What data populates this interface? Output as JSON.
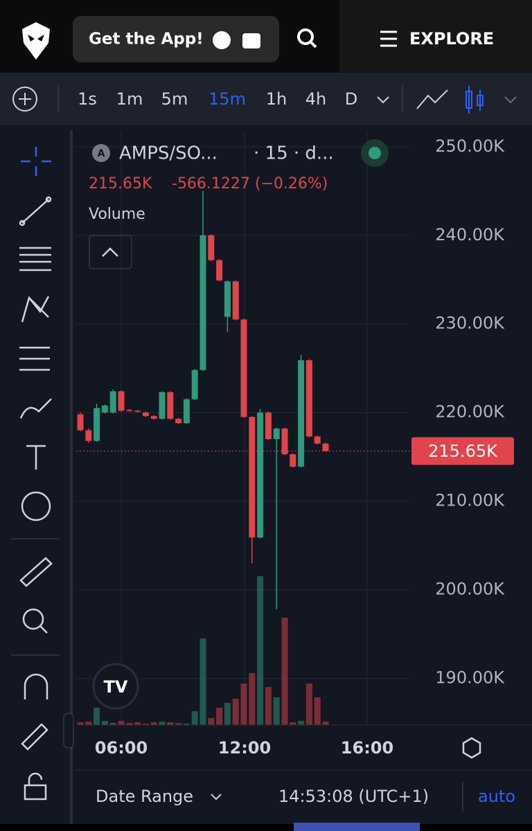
{
  "header": {
    "app_button": "Get the App!",
    "explore": "EXPLORE"
  },
  "intervals": [
    "1s",
    "1m",
    "5m",
    "15m",
    "1h",
    "4h",
    "D"
  ],
  "active_interval": "15m",
  "chart_data": {
    "type": "candlestick",
    "symbol": "AMPS/SO...",
    "interval_info": "· 15 · d...",
    "change": "-566.1227 (−0.26%)",
    "volume_label": "Volume",
    "up_color": "#2f9a7d",
    "down_color": "#e2444b",
    "open": [
      219.8,
      218.0,
      216.8,
      220.0,
      220.0,
      222.4,
      220.3,
      220.2,
      220.0,
      219.6,
      219.3,
      222.3,
      219.3,
      218.8,
      221.5,
      224.8,
      240.0,
      237.2,
      230.8,
      234.8,
      230.5,
      219.5,
      205.9,
      220.0,
      217.0,
      218.2,
      215.3,
      213.9,
      225.9,
      217.3,
      216.5
    ],
    "high": [
      220.0,
      218.2,
      221.0,
      220.9,
      222.6,
      222.5,
      220.4,
      220.3,
      220.1,
      219.7,
      222.4,
      222.4,
      219.4,
      221.6,
      224.9,
      245.0,
      240.1,
      237.3,
      234.9,
      234.9,
      230.6,
      219.6,
      220.4,
      220.1,
      218.3,
      218.3,
      215.4,
      226.5,
      226.0,
      217.4,
      216.6
    ],
    "low": [
      217.9,
      216.6,
      216.7,
      219.9,
      219.9,
      220.1,
      220.1,
      220.0,
      219.5,
      219.2,
      219.2,
      219.2,
      218.7,
      218.7,
      221.4,
      224.7,
      237.1,
      234.8,
      229.1,
      230.4,
      219.4,
      203.0,
      205.8,
      216.9,
      197.8,
      215.2,
      213.8,
      213.8,
      217.2,
      216.4,
      215.6
    ],
    "close": [
      218.0,
      216.8,
      220.5,
      220.8,
      222.4,
      220.2,
      220.2,
      220.1,
      219.6,
      219.3,
      222.3,
      219.3,
      218.8,
      221.5,
      224.8,
      240.0,
      237.2,
      234.9,
      234.8,
      230.5,
      219.5,
      205.9,
      220.0,
      217.0,
      218.2,
      215.3,
      213.9,
      225.9,
      217.3,
      216.5,
      215.65
    ],
    "volume": [
      4,
      5,
      25,
      6,
      3,
      6,
      3,
      4,
      2,
      4,
      5,
      4,
      3,
      2,
      20,
      125,
      10,
      25,
      32,
      38,
      60,
      75,
      215,
      55,
      40,
      155,
      4,
      6,
      60,
      40,
      5
    ],
    "vlim": [
      0,
      320
    ],
    "last_price": 215.65,
    "last_price_label": "215.65K",
    "ylim": [
      184.9,
      251.7
    ],
    "yticks": [
      {
        "value": 250,
        "label": "250.00K"
      },
      {
        "value": 240,
        "label": "240.00K"
      },
      {
        "value": 230,
        "label": "230.00K"
      },
      {
        "value": 220,
        "label": "220.00K"
      },
      {
        "value": 210,
        "label": "210.00K"
      },
      {
        "value": 200,
        "label": "200.00K"
      },
      {
        "value": 190,
        "label": "190.00K"
      }
    ],
    "time_labels": [
      "06:00",
      "12:00",
      "16:00"
    ]
  },
  "footer": {
    "date_range": "Date Range",
    "clock": "14:53:08 (UTC+1)",
    "auto": "auto"
  }
}
